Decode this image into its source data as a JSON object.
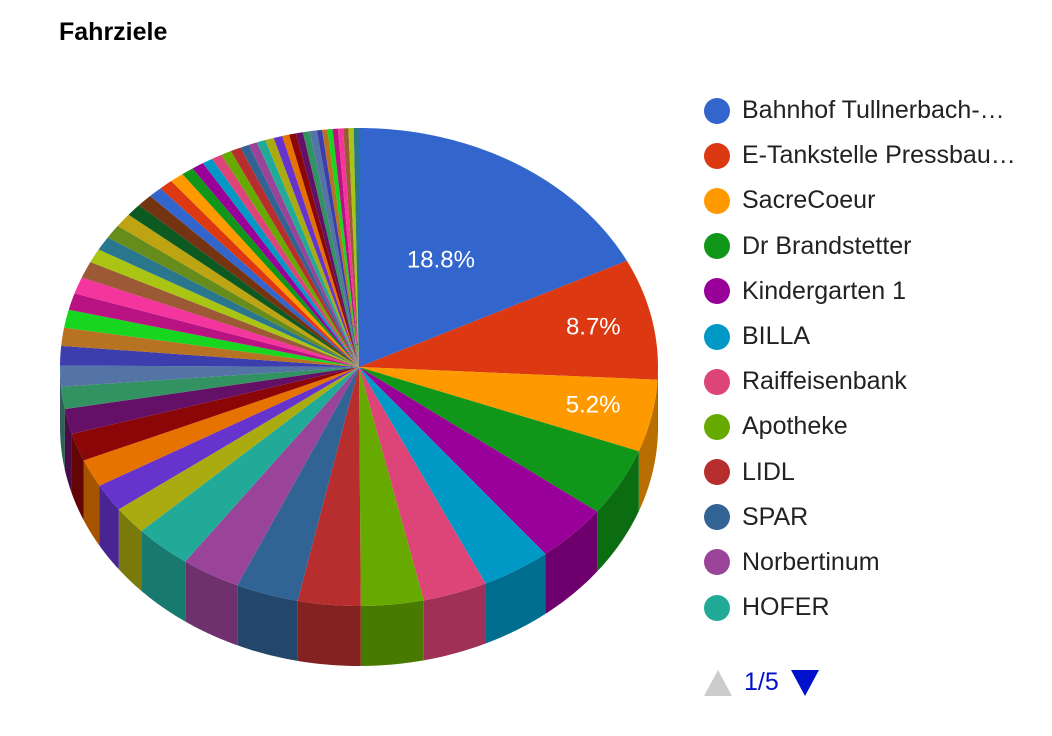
{
  "chart_data": {
    "type": "pie",
    "title": "Fahrziele",
    "slices": [
      {
        "label": "Bahnhof Tullnerbach-…",
        "value": 18.8,
        "color": "#3366cc",
        "data_label": "18.8%"
      },
      {
        "label": "E-Tankstelle Pressbau…",
        "value": 8.7,
        "color": "#dc3912",
        "data_label": "8.7%"
      },
      {
        "label": "SacreCoeur",
        "value": 5.2,
        "color": "#ff9900",
        "data_label": "5.2%"
      },
      {
        "label": "Dr Brandstetter",
        "value": 4.9,
        "color": "#109618"
      },
      {
        "label": "Kindergarten 1",
        "value": 4.2,
        "color": "#990099"
      },
      {
        "label": "BILLA",
        "value": 4.0,
        "color": "#0099c6"
      },
      {
        "label": "Raiffeisenbank",
        "value": 3.7,
        "color": "#dd4477"
      },
      {
        "label": "Apotheke",
        "value": 3.6,
        "color": "#66aa00"
      },
      {
        "label": "LIDL",
        "value": 3.6,
        "color": "#b82e2e"
      },
      {
        "label": "SPAR",
        "value": 3.6,
        "color": "#316395"
      },
      {
        "label": "Norbertinum",
        "value": 3.4,
        "color": "#994499"
      },
      {
        "label": "HOFER",
        "value": 3.3,
        "color": "#22aa99"
      },
      {
        "value": 2.0,
        "color": "#aaaa11"
      },
      {
        "value": 2.0,
        "color": "#6633cc"
      },
      {
        "value": 2.0,
        "color": "#e67300"
      },
      {
        "value": 2.0,
        "color": "#8b0707"
      },
      {
        "value": 1.8,
        "color": "#651067"
      },
      {
        "value": 1.6,
        "color": "#329262"
      },
      {
        "value": 1.5,
        "color": "#5574a6"
      },
      {
        "value": 1.4,
        "color": "#3b3eac"
      },
      {
        "value": 1.3,
        "color": "#b77322"
      },
      {
        "value": 1.3,
        "color": "#16d620"
      },
      {
        "value": 1.2,
        "color": "#b91383"
      },
      {
        "value": 1.2,
        "color": "#f4359e"
      },
      {
        "value": 1.2,
        "color": "#9c5935"
      },
      {
        "value": 1.0,
        "color": "#a9c413"
      },
      {
        "value": 1.0,
        "color": "#2a778d"
      },
      {
        "value": 1.0,
        "color": "#668d1c"
      },
      {
        "value": 1.0,
        "color": "#bea413"
      },
      {
        "value": 0.9,
        "color": "#0c5922"
      },
      {
        "value": 0.9,
        "color": "#743411"
      },
      {
        "value": 0.8,
        "color": "#3366cc"
      },
      {
        "value": 0.8,
        "color": "#dc3912"
      },
      {
        "value": 0.8,
        "color": "#ff9900"
      },
      {
        "value": 0.7,
        "color": "#109618"
      },
      {
        "value": 0.7,
        "color": "#990099"
      },
      {
        "value": 0.6,
        "color": "#0099c6"
      },
      {
        "value": 0.6,
        "color": "#dd4477"
      },
      {
        "value": 0.6,
        "color": "#66aa00"
      },
      {
        "value": 0.6,
        "color": "#b82e2e"
      },
      {
        "value": 0.5,
        "color": "#316395"
      },
      {
        "value": 0.5,
        "color": "#994499"
      },
      {
        "value": 0.5,
        "color": "#22aa99"
      },
      {
        "value": 0.5,
        "color": "#aaaa11"
      },
      {
        "value": 0.5,
        "color": "#6633cc"
      },
      {
        "value": 0.4,
        "color": "#e67300"
      },
      {
        "value": 0.4,
        "color": "#8b0707"
      },
      {
        "value": 0.4,
        "color": "#651067"
      },
      {
        "value": 0.4,
        "color": "#329262"
      },
      {
        "value": 0.4,
        "color": "#5574a6"
      },
      {
        "value": 0.3,
        "color": "#3b3eac"
      },
      {
        "value": 0.3,
        "color": "#b77322"
      },
      {
        "value": 0.3,
        "color": "#16d620"
      },
      {
        "value": 0.3,
        "color": "#b91383"
      },
      {
        "value": 0.3,
        "color": "#f4359e"
      },
      {
        "value": 0.3,
        "color": "#9c5935"
      },
      {
        "value": 0.3,
        "color": "#a9c413"
      },
      {
        "value": 0.3,
        "color": "#2a778d"
      }
    ],
    "legend_position": "right",
    "is_3d": true
  },
  "legend": {
    "pager": {
      "text": "1/5",
      "up_icon": "triangle-up-icon",
      "down_icon": "triangle-down-icon"
    }
  }
}
